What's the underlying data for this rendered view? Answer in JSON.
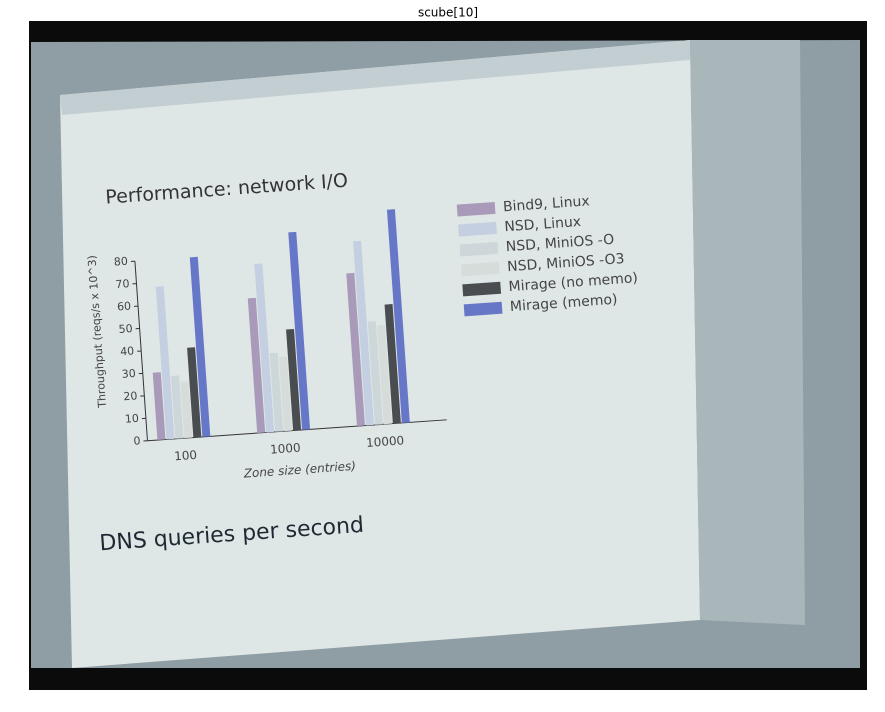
{
  "figure_title": "scube[10]",
  "chart_data": {
    "type": "bar",
    "title": "Performance: network I/O",
    "y_label": "Throughput (reqs/s x 10^3)",
    "x_label": "Zone size (entries)",
    "caption": "DNS queries per second",
    "categories": [
      "100",
      "1000",
      "10000"
    ],
    "series": [
      {
        "name": "Bind9, Linux",
        "color": "#a89ab8",
        "values": [
          30,
          60,
          68
        ]
      },
      {
        "name": "NSD, Linux",
        "color": "#c4cfe2",
        "values": [
          68,
          75,
          82
        ]
      },
      {
        "name": "NSD, MiniOS -O",
        "color": "#cdd6d8",
        "values": [
          28,
          35,
          46
        ]
      },
      {
        "name": "NSD, MiniOS -O3",
        "color": "#d6dcda",
        "values": [
          25,
          33,
          44
        ]
      },
      {
        "name": "Mirage (no memo)",
        "color": "#4a4d50",
        "values": [
          40,
          45,
          53
        ]
      },
      {
        "name": "Mirage (memo)",
        "color": "#6677c8",
        "values": [
          80,
          88,
          95
        ]
      }
    ],
    "ylim": [
      0,
      100
    ],
    "yticks": [
      0,
      10,
      20,
      30,
      40,
      50,
      60,
      70,
      80
    ]
  }
}
